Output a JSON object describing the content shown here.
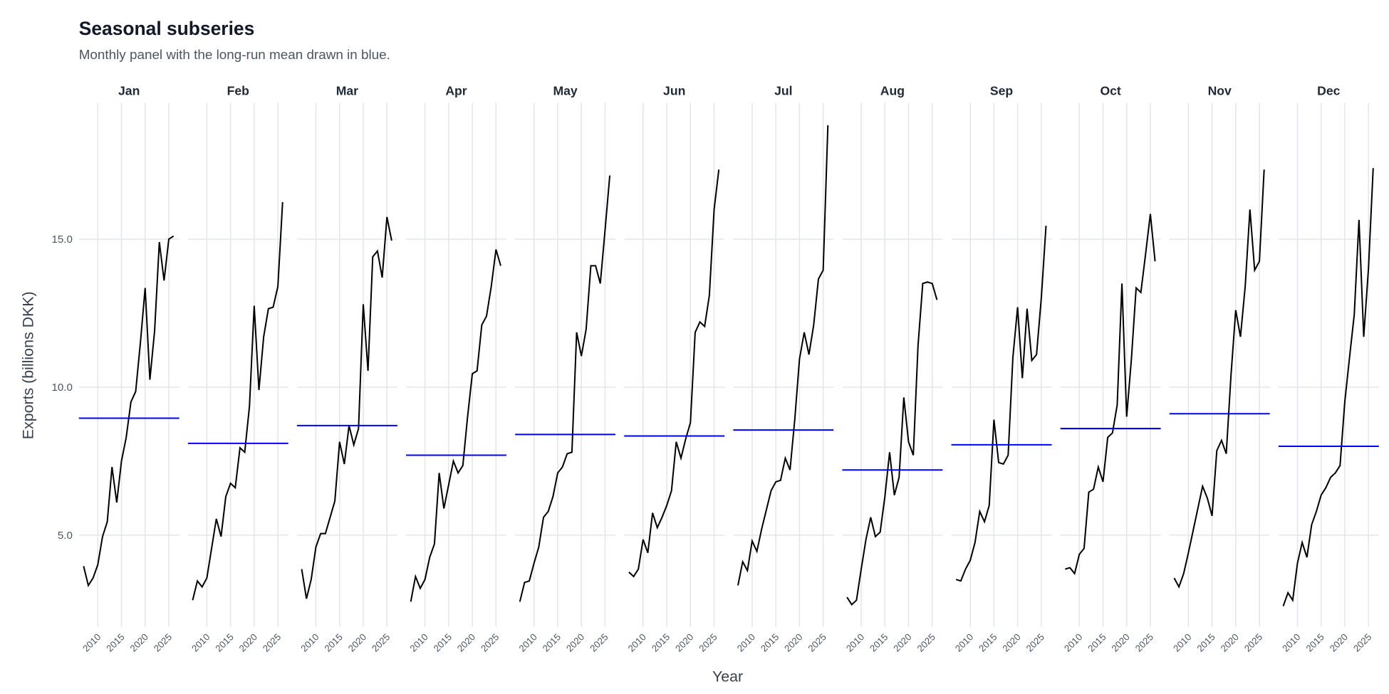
{
  "chart_data": {
    "type": "line",
    "title": "Seasonal subseries",
    "subtitle": "Monthly panel with the long-run mean drawn in blue.",
    "xlabel": "Year",
    "ylabel": "Exports (billions DKK)",
    "x": [
      2007,
      2008,
      2009,
      2010,
      2011,
      2012,
      2013,
      2014,
      2015,
      2016,
      2017,
      2018,
      2019,
      2020,
      2021,
      2022,
      2023,
      2024,
      2025,
      2026
    ],
    "xlim": [
      2006,
      2027.2
    ],
    "xticks": [
      2010,
      2015,
      2020,
      2025
    ],
    "ylim": [
      1.9,
      19.6
    ],
    "yticks": [
      {
        "value": 5,
        "label": "5.0"
      },
      {
        "value": 10,
        "label": "10.0"
      },
      {
        "value": 15,
        "label": "15.0"
      }
    ],
    "grid": true,
    "line_color": "#000000",
    "mean_color": "#0000ff",
    "panels": [
      {
        "name": "Jan",
        "mean": 8.95,
        "values": [
          3.95,
          3.3,
          3.55,
          4.0,
          4.95,
          5.45,
          7.3,
          6.1,
          7.5,
          8.3,
          9.5,
          9.85,
          11.5,
          13.35,
          10.25,
          11.9,
          14.9,
          13.6,
          15.0,
          15.1
        ]
      },
      {
        "name": "Feb",
        "mean": 8.1,
        "values": [
          2.8,
          3.45,
          3.25,
          3.55,
          4.55,
          5.55,
          4.95,
          6.3,
          6.75,
          6.6,
          7.95,
          7.8,
          9.35,
          12.75,
          9.9,
          11.7,
          12.65,
          12.7,
          13.4,
          16.25
        ]
      },
      {
        "name": "Mar",
        "mean": 8.7,
        "values": [
          3.85,
          2.85,
          3.5,
          4.6,
          5.05,
          5.05,
          5.6,
          6.15,
          8.15,
          7.4,
          8.7,
          8.05,
          8.6,
          12.8,
          10.55,
          14.4,
          14.6,
          13.7,
          15.75,
          14.95
        ]
      },
      {
        "name": "Apr",
        "mean": 7.7,
        "values": [
          2.75,
          3.6,
          3.2,
          3.5,
          4.25,
          4.7,
          7.1,
          5.9,
          6.7,
          7.5,
          7.1,
          7.35,
          9.0,
          10.45,
          10.55,
          12.1,
          12.4,
          13.4,
          14.65,
          14.1
        ]
      },
      {
        "name": "May",
        "mean": 8.4,
        "values": [
          2.75,
          3.4,
          3.45,
          4.05,
          4.6,
          5.6,
          5.8,
          6.3,
          7.1,
          7.3,
          7.75,
          7.8,
          11.85,
          11.05,
          11.95,
          14.1,
          14.1,
          13.5,
          15.3,
          17.15
        ]
      },
      {
        "name": "Jun",
        "mean": 8.35,
        "values": [
          3.75,
          3.6,
          3.85,
          4.85,
          4.4,
          5.75,
          5.25,
          5.6,
          6.0,
          6.5,
          8.15,
          7.6,
          8.25,
          8.8,
          11.85,
          12.2,
          12.05,
          13.1,
          16.0,
          17.35
        ]
      },
      {
        "name": "Jul",
        "mean": 8.55,
        "values": [
          3.3,
          4.1,
          3.8,
          4.8,
          4.45,
          5.2,
          5.85,
          6.5,
          6.8,
          6.85,
          7.6,
          7.2,
          8.9,
          10.95,
          11.85,
          11.1,
          12.1,
          13.65,
          13.95,
          18.85
        ]
      },
      {
        "name": "Aug",
        "mean": 7.2,
        "values": [
          2.9,
          2.65,
          2.8,
          3.85,
          4.85,
          5.6,
          4.95,
          5.1,
          6.3,
          7.8,
          6.35,
          6.95,
          9.65,
          8.15,
          7.7,
          11.4,
          13.5,
          13.55,
          13.5,
          12.95
        ]
      },
      {
        "name": "Sep",
        "mean": 8.05,
        "values": [
          3.5,
          3.45,
          3.85,
          4.15,
          4.75,
          5.8,
          5.45,
          6.0,
          8.9,
          7.45,
          7.4,
          7.7,
          11.0,
          12.7,
          10.3,
          12.65,
          10.9,
          11.1,
          13.0,
          15.45
        ]
      },
      {
        "name": "Oct",
        "mean": 8.6,
        "values": [
          3.85,
          3.9,
          3.7,
          4.35,
          4.55,
          6.45,
          6.55,
          7.3,
          6.8,
          8.3,
          8.45,
          9.4,
          13.5,
          9.0,
          10.95,
          13.35,
          13.2,
          14.5,
          15.85,
          14.25
        ]
      },
      {
        "name": "Nov",
        "mean": 9.1,
        "values": [
          3.55,
          3.25,
          3.7,
          4.4,
          5.15,
          5.9,
          6.65,
          6.25,
          5.65,
          7.85,
          8.2,
          7.75,
          10.4,
          12.6,
          11.7,
          13.4,
          16.0,
          13.95,
          14.25,
          17.35
        ]
      },
      {
        "name": "Dec",
        "mean": 8.0,
        "values": [
          2.6,
          3.05,
          2.8,
          4.05,
          4.75,
          4.25,
          5.35,
          5.8,
          6.35,
          6.6,
          6.95,
          7.1,
          7.35,
          9.5,
          11.0,
          12.45,
          15.65,
          11.7,
          14.0,
          17.4
        ]
      }
    ]
  }
}
